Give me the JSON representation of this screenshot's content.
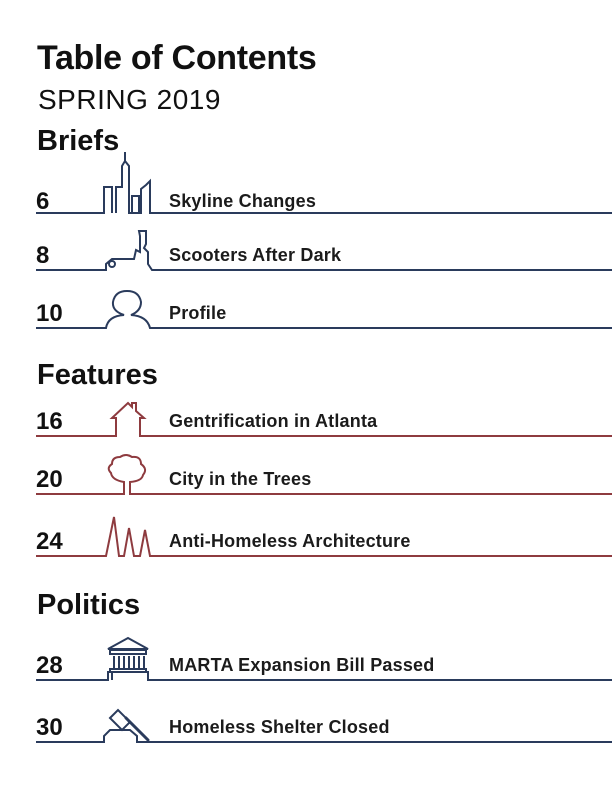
{
  "header": {
    "title": "Table of Contents",
    "issue": "SPRING 2019"
  },
  "colors": {
    "navy": "#2a3b5c",
    "maroon": "#8e3b3f"
  },
  "sections": [
    {
      "name": "Briefs",
      "entries": [
        {
          "page": "6",
          "title": "Skyline Changes",
          "icon": "skyline-icon"
        },
        {
          "page": "8",
          "title": "Scooters After Dark",
          "icon": "scooter-icon"
        },
        {
          "page": "10",
          "title": "Profile",
          "icon": "person-icon"
        }
      ]
    },
    {
      "name": "Features",
      "entries": [
        {
          "page": "16",
          "title": "Gentrification in Atlanta",
          "icon": "house-icon"
        },
        {
          "page": "20",
          "title": "City in the Trees",
          "icon": "tree-icon"
        },
        {
          "page": "24",
          "title": "Anti-Homeless Architecture",
          "icon": "spikes-icon"
        }
      ]
    },
    {
      "name": "Politics",
      "entries": [
        {
          "page": "28",
          "title": "MARTA Expansion Bill Passed",
          "icon": "capitol-icon"
        },
        {
          "page": "30",
          "title": "Homeless Shelter Closed",
          "icon": "gavel-icon"
        }
      ]
    }
  ]
}
